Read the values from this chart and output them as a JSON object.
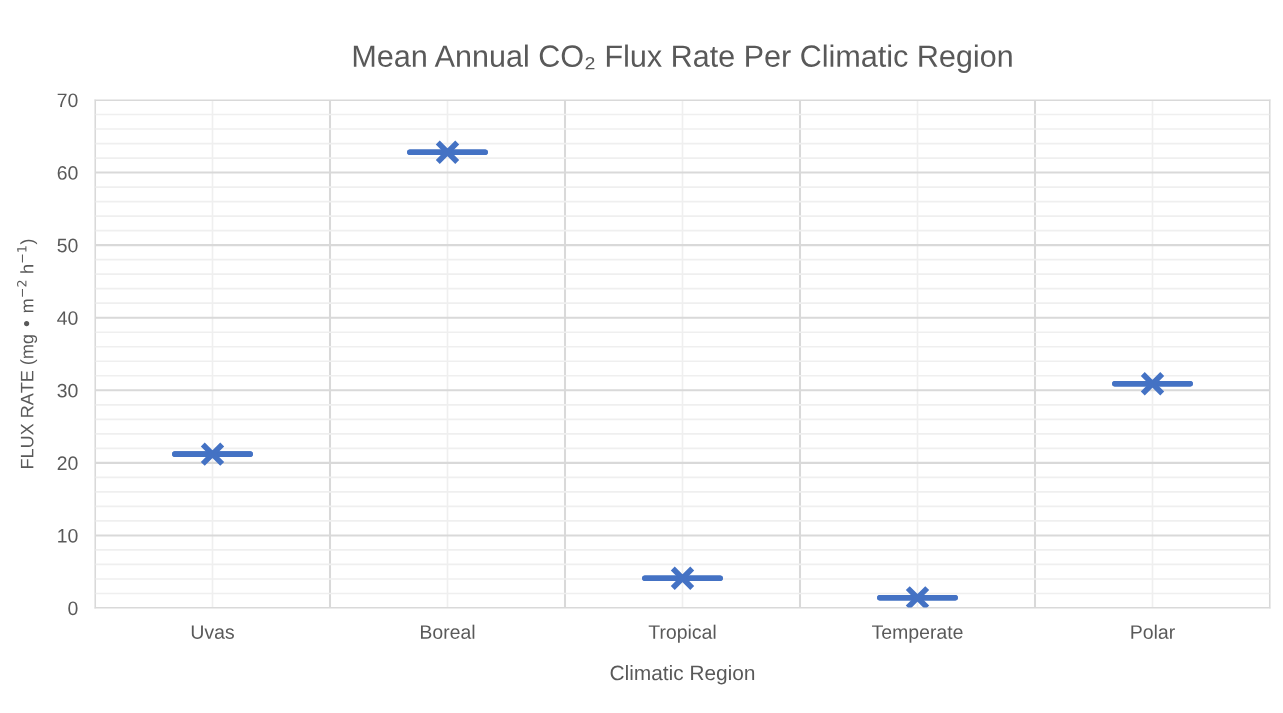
{
  "chart_data": {
    "type": "box",
    "title": "Mean Annual CO₂ Flux Rate Per Climatic Region",
    "xlabel": "Climatic Region",
    "ylabel": "FLUX RATE (mg • m$^{−2}$ h$^{−1}$)",
    "categories": [
      "Uvas",
      "Boreal",
      "Tropical",
      "Temperate",
      "Polar"
    ],
    "series": [
      {
        "color": "#4472c4",
        "boxes": [
          {
            "low": 21.2,
            "q1": 21.2,
            "median": 21.2,
            "q3": 21.2,
            "high": 21.2,
            "mean": 21.2
          },
          {
            "low": 62.8,
            "q1": 62.8,
            "median": 62.8,
            "q3": 62.8,
            "high": 62.8,
            "mean": 62.8
          },
          {
            "low": 4.1,
            "q1": 4.1,
            "median": 4.1,
            "q3": 4.1,
            "high": 4.1,
            "mean": 4.1
          },
          {
            "low": 1.4,
            "q1": 1.4,
            "median": 1.4,
            "q3": 1.4,
            "high": 1.4,
            "mean": 1.4
          },
          {
            "low": 30.9,
            "q1": 30.9,
            "median": 30.9,
            "q3": 30.9,
            "high": 30.9,
            "mean": 30.9
          }
        ]
      }
    ],
    "ylim": [
      0,
      70
    ],
    "yticks": [
      0,
      10,
      20,
      30,
      40,
      50,
      60,
      70
    ],
    "grid": true,
    "marker": "cross"
  }
}
